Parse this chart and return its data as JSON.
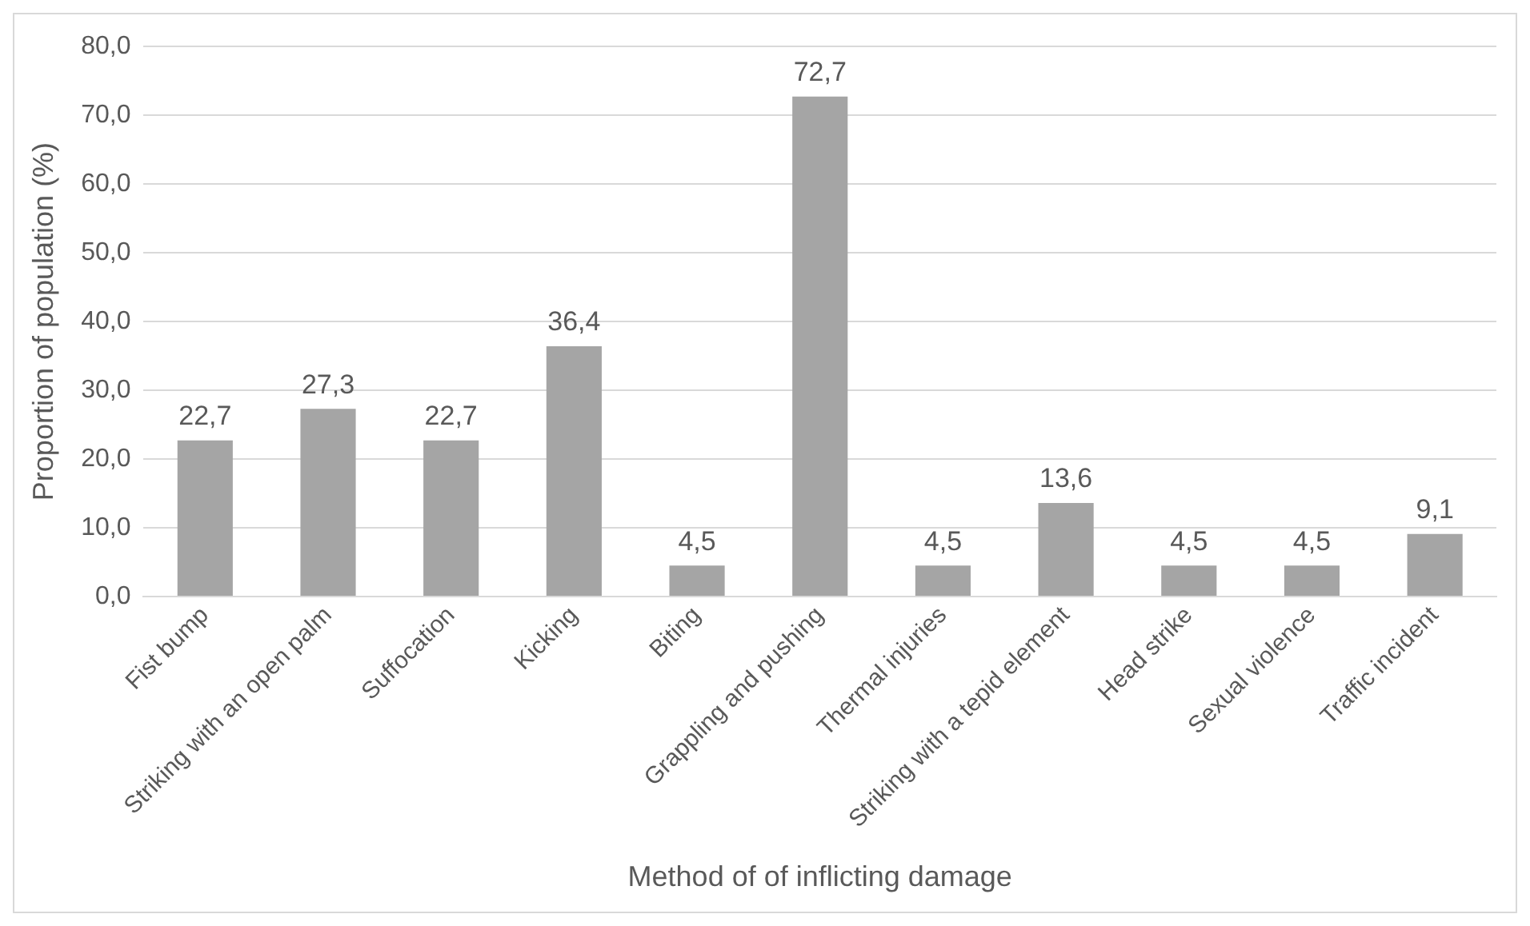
{
  "chart_data": {
    "type": "bar",
    "xlabel": "Method of of inflicting damage",
    "ylabel": "Proportion of population (%)",
    "categories": [
      "Fist bump",
      "Striking with an open palm",
      "Suffocation",
      "Kicking",
      "Biting",
      "Grappling and pushing",
      "Thermal injuries",
      "Striking with a tepid element",
      "Head strike",
      "Sexual violence",
      "Traffic incident"
    ],
    "values": [
      22.7,
      27.3,
      22.7,
      36.4,
      4.5,
      72.7,
      4.5,
      13.6,
      4.5,
      4.5,
      9.1
    ],
    "value_labels": [
      "22,7",
      "27,3",
      "22,7",
      "36,4",
      "4,5",
      "72,7",
      "4,5",
      "13,6",
      "4,5",
      "4,5",
      "9,1"
    ],
    "color": "#a5a5a5",
    "ylim": [
      0,
      80
    ],
    "yticks": [
      {
        "value": 0,
        "label": "0,0"
      },
      {
        "value": 10,
        "label": "10,0"
      },
      {
        "value": 20,
        "label": "20,0"
      },
      {
        "value": 30,
        "label": "30,0"
      },
      {
        "value": 40,
        "label": "40,0"
      },
      {
        "value": 50,
        "label": "50,0"
      },
      {
        "value": 60,
        "label": "60,0"
      },
      {
        "value": 70,
        "label": "70,0"
      },
      {
        "value": 80,
        "label": "80,0"
      }
    ],
    "grid": "y",
    "legend": false
  }
}
